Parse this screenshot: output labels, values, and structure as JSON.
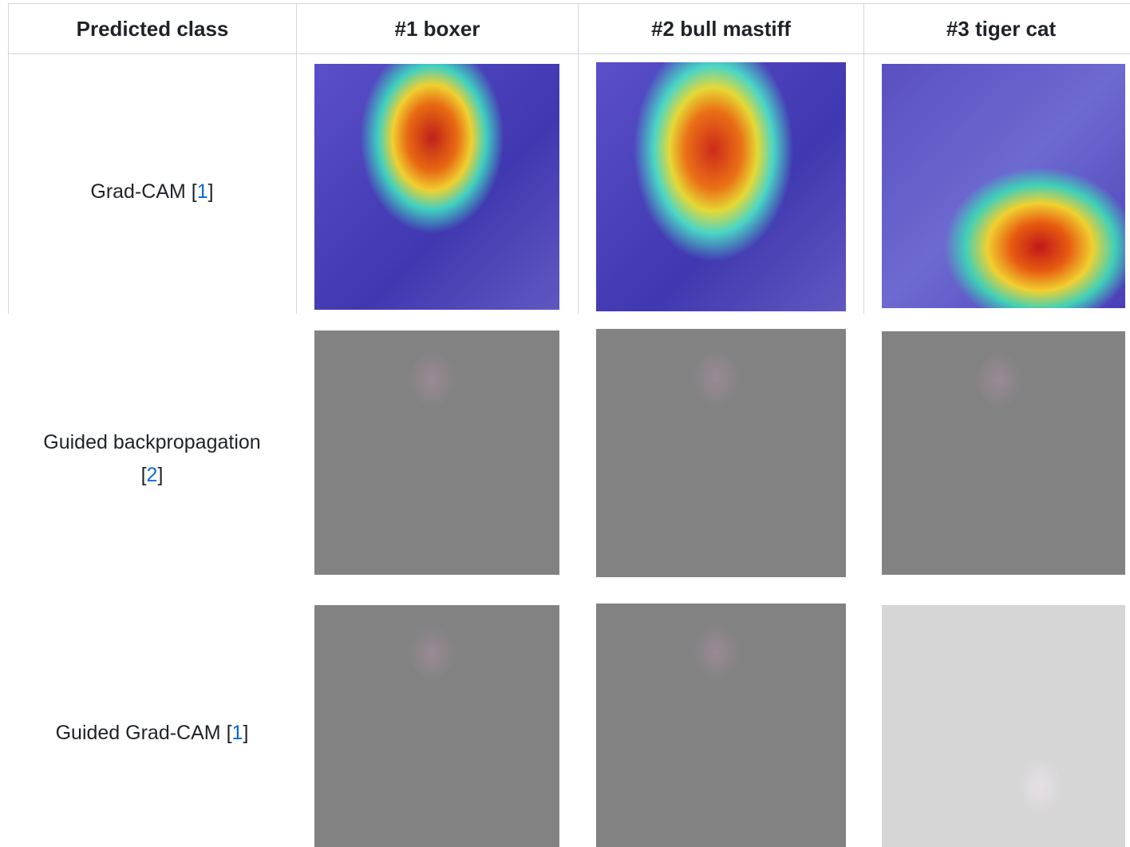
{
  "table": {
    "header": [
      "Predicted class",
      "#1 boxer",
      "#2 bull mastiff",
      "#3 tiger cat"
    ],
    "bracket_open": "[",
    "bracket_close": "]",
    "rows": [
      {
        "label": "Grad-CAM",
        "ref": "1"
      },
      {
        "label": "Guided backpropagation",
        "ref": "2"
      },
      {
        "label": "Guided Grad-CAM",
        "ref": "1"
      }
    ]
  }
}
